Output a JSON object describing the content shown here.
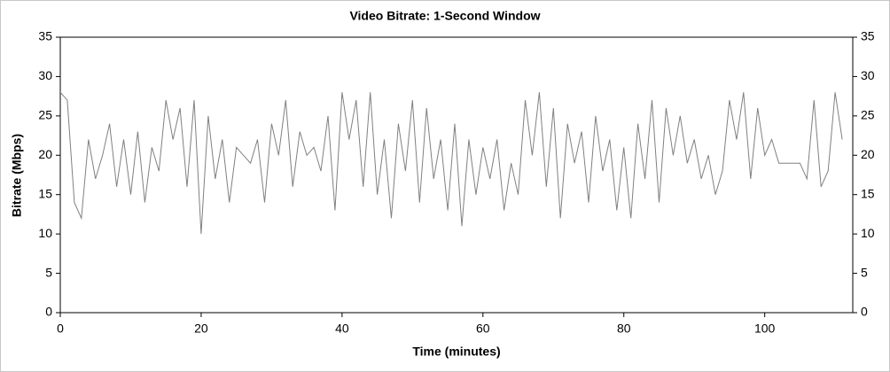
{
  "chart_data": {
    "type": "line",
    "title": "Video Bitrate: 1-Second Window",
    "x_label": "Time (minutes)",
    "y_label": "Bitrate (Mbps)",
    "x": [
      0,
      1,
      2,
      3,
      4,
      5,
      6,
      7,
      8,
      9,
      10,
      11,
      12,
      13,
      14,
      15,
      16,
      17,
      18,
      19,
      20,
      21,
      22,
      23,
      24,
      25,
      26,
      27,
      28,
      29,
      30,
      31,
      32,
      33,
      34,
      35,
      36,
      37,
      38,
      39,
      40,
      41,
      42,
      43,
      44,
      45,
      46,
      47,
      48,
      49,
      50,
      51,
      52,
      53,
      54,
      55,
      56,
      57,
      58,
      59,
      60,
      61,
      62,
      63,
      64,
      65,
      66,
      67,
      68,
      69,
      70,
      71,
      72,
      73,
      74,
      75,
      76,
      77,
      78,
      79,
      80,
      81,
      82,
      83,
      84,
      85,
      86,
      87,
      88,
      89,
      90,
      91,
      92,
      93,
      94,
      95,
      96,
      97,
      98,
      99,
      100,
      101,
      102,
      103,
      104,
      105,
      106,
      107,
      108,
      109,
      110,
      111
    ],
    "series": [
      {
        "name": "Bitrate",
        "color": "#808080",
        "values": [
          28,
          27,
          14,
          12,
          22,
          17,
          20,
          24,
          16,
          22,
          15,
          23,
          14,
          21,
          18,
          27,
          22,
          26,
          16,
          27,
          10,
          25,
          17,
          22,
          14,
          21,
          20,
          19,
          22,
          14,
          24,
          20,
          27,
          16,
          23,
          20,
          21,
          18,
          25,
          13,
          28,
          22,
          27,
          16,
          28,
          15,
          22,
          12,
          24,
          18,
          27,
          14,
          26,
          17,
          22,
          13,
          24,
          11,
          22,
          15,
          21,
          17,
          22,
          13,
          19,
          15,
          27,
          20,
          28,
          16,
          26,
          12,
          24,
          19,
          23,
          14,
          25,
          18,
          22,
          13,
          21,
          12,
          24,
          17,
          27,
          14,
          26,
          20,
          25,
          19,
          22,
          17,
          20,
          15,
          18,
          27,
          22,
          28,
          17,
          26,
          20,
          22,
          19,
          19,
          19,
          19,
          17,
          27,
          16,
          18,
          28,
          22
        ]
      }
    ],
    "xlim": [
      0,
      112.5
    ],
    "xticks": [
      0,
      20,
      40,
      60,
      80,
      100
    ],
    "ylim": [
      0,
      35
    ],
    "yticks": [
      0,
      5,
      10,
      15,
      20,
      25,
      30,
      35
    ],
    "y2lim": [
      0,
      35
    ],
    "y2ticks": [
      0,
      5,
      10,
      15,
      20,
      25,
      30,
      35
    ]
  }
}
